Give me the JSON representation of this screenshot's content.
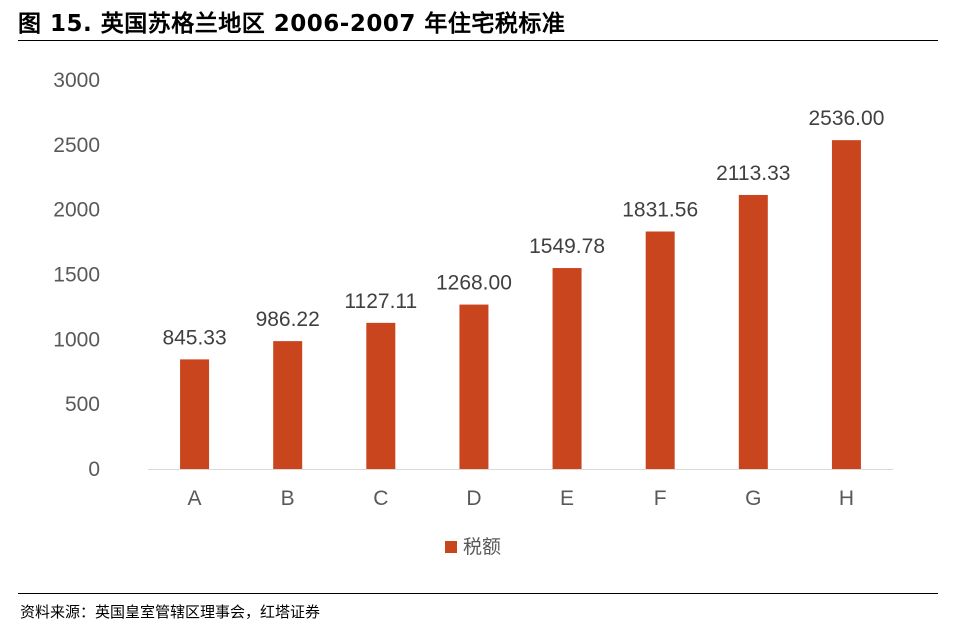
{
  "header": {
    "title": "图 15. 英国苏格兰地区 2006-2007 年住宅税标准"
  },
  "footer": {
    "source": "资料来源：英国皇室管辖区理事会，红塔证券"
  },
  "chart_data": {
    "type": "bar",
    "title": "",
    "xlabel": "",
    "ylabel": "",
    "categories": [
      "A",
      "B",
      "C",
      "D",
      "E",
      "F",
      "G",
      "H"
    ],
    "series": [
      {
        "name": "税额",
        "values": [
          845.33,
          986.22,
          1127.11,
          1268.0,
          1549.78,
          1831.56,
          2113.33,
          2536.0
        ],
        "labels": [
          "845.33",
          "986.22",
          "1127.11",
          "1268.00",
          "1549.78",
          "1831.56",
          "2113.33",
          "2536.00"
        ],
        "color": "#C9451D"
      }
    ],
    "yticks": [
      "0",
      "500",
      "1000",
      "1500",
      "2000",
      "2500",
      "3000"
    ],
    "ylim": [
      0,
      3000
    ],
    "grid": false,
    "legend": "bottom-center"
  }
}
